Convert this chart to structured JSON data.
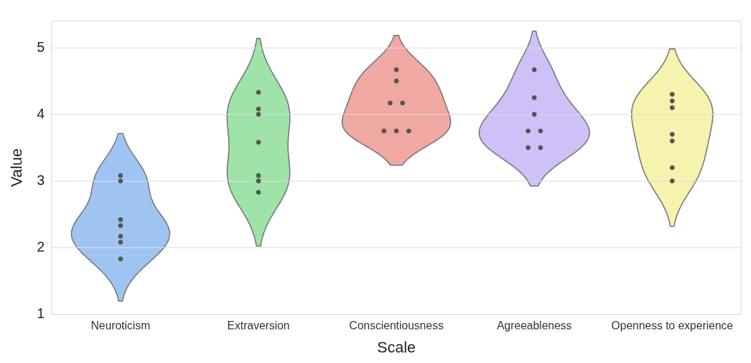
{
  "chart_data": {
    "type": "scatter",
    "xlabel": "Scale",
    "ylabel": "Value",
    "categories": [
      "Neuroticism",
      "Extraversion",
      "Conscientiousness",
      "Agreeableness",
      "Openness to experience"
    ],
    "colors": [
      "#a0c4f2",
      "#9fe3a8",
      "#f0a8a3",
      "#cfc0f8",
      "#f5f3ae"
    ],
    "ylim": [
      1,
      5.4
    ],
    "yticks": [
      1,
      2,
      3,
      4,
      5
    ],
    "grid": "y",
    "legend": false,
    "marker": "circle",
    "series": [
      {
        "color": "#555555",
        "x": [
          "Neuroticism",
          "Neuroticism",
          "Neuroticism",
          "Neuroticism",
          "Neuroticism",
          "Neuroticism",
          "Neuroticism"
        ],
        "values": [
          3.08,
          3.0,
          2.42,
          2.33,
          2.17,
          2.08,
          1.83
        ]
      },
      {
        "color": "#555555",
        "x": [
          "Extraversion",
          "Extraversion",
          "Extraversion",
          "Extraversion",
          "Extraversion",
          "Extraversion",
          "Extraversion"
        ],
        "values": [
          4.33,
          4.08,
          4.0,
          3.58,
          3.08,
          3.0,
          2.83
        ]
      },
      {
        "color": "#555555",
        "x": [
          "Conscientiousness",
          "Conscientiousness",
          "Conscientiousness",
          "Conscientiousness",
          "Conscientiousness",
          "Conscientiousness",
          "Conscientiousness"
        ],
        "values": [
          4.67,
          4.5,
          4.17,
          4.17,
          3.75,
          3.75,
          3.75
        ]
      },
      {
        "color": "#555555",
        "x": [
          "Agreeableness",
          "Agreeableness",
          "Agreeableness",
          "Agreeableness",
          "Agreeableness",
          "Agreeableness",
          "Agreeableness"
        ],
        "values": [
          4.67,
          4.25,
          4.0,
          3.75,
          3.75,
          3.5,
          3.5
        ]
      },
      {
        "color": "#555555",
        "x": [
          "Openness to experience",
          "Openness to experience",
          "Openness to experience",
          "Openness to experience",
          "Openness to experience",
          "Openness to experience",
          "Openness to experience"
        ],
        "values": [
          4.3,
          4.2,
          4.1,
          3.7,
          3.6,
          3.2,
          3.0
        ]
      }
    ]
  }
}
